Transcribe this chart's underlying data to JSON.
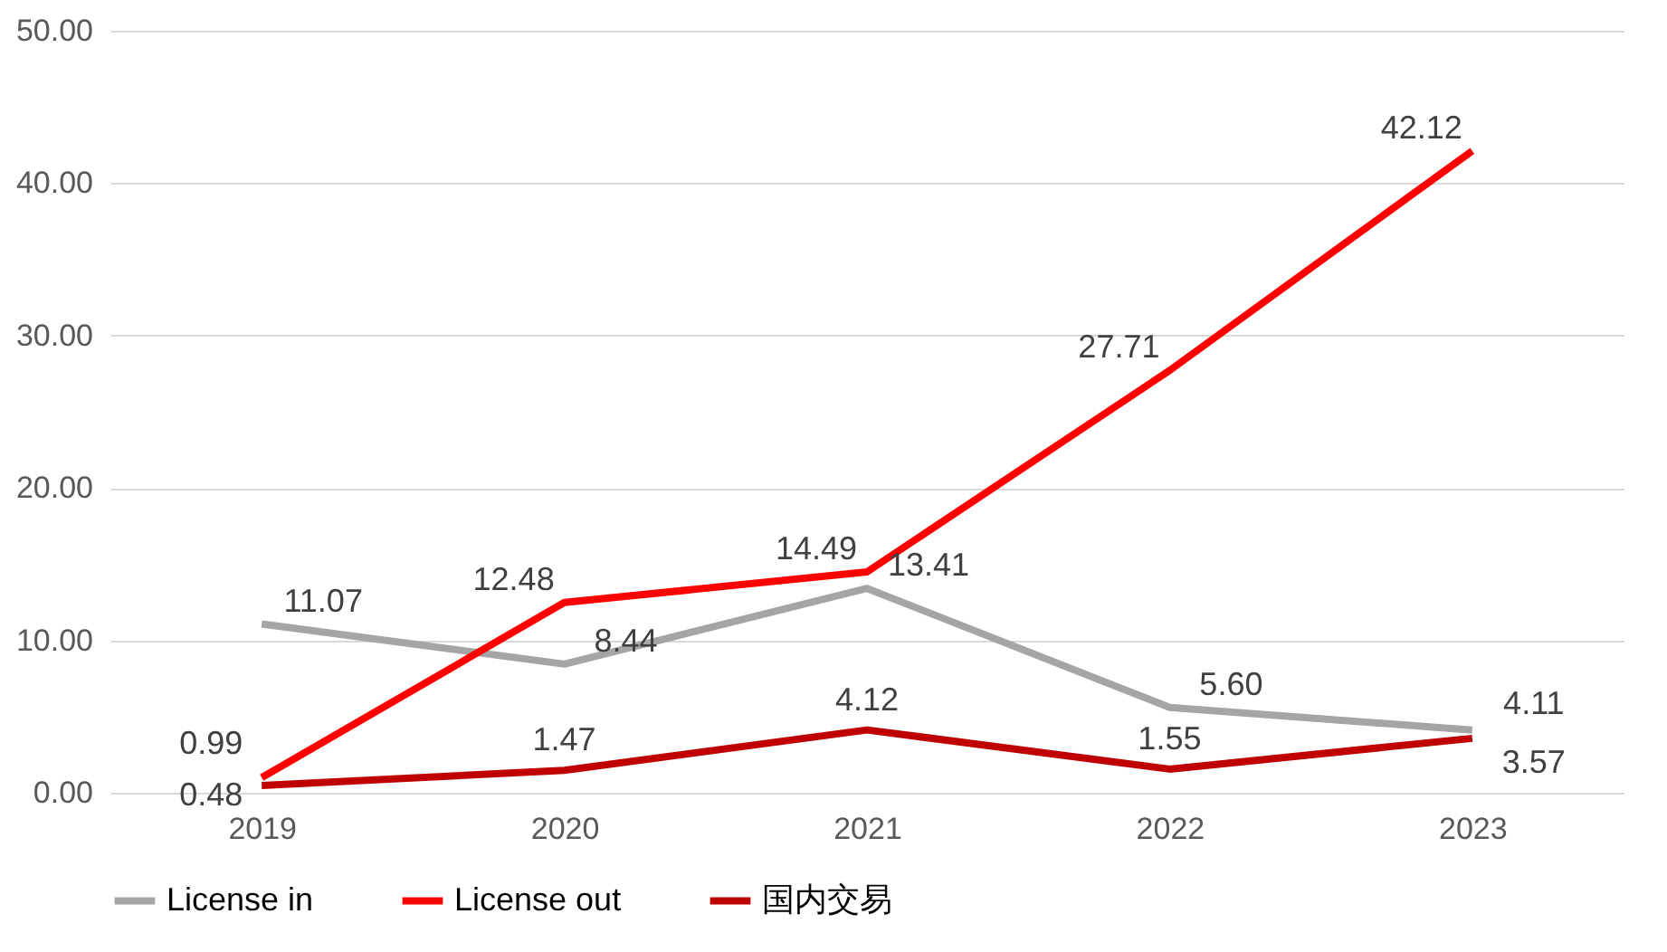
{
  "chart_data": {
    "type": "line",
    "categories": [
      "2019",
      "2020",
      "2021",
      "2022",
      "2023"
    ],
    "series": [
      {
        "name": "License in",
        "color": "#a5a5a5",
        "values": [
          11.07,
          8.44,
          13.41,
          5.6,
          4.11
        ],
        "value_labels": [
          "11.07",
          "8.44",
          "13.41",
          "5.60",
          "4.11"
        ]
      },
      {
        "name": "License out",
        "color": "#ff0000",
        "values": [
          0.99,
          12.48,
          14.49,
          27.71,
          42.12
        ],
        "value_labels": [
          "0.99",
          "12.48",
          "14.49",
          "27.71",
          "42.12"
        ]
      },
      {
        "name": "国内交易",
        "color": "#c00000",
        "values": [
          0.48,
          1.47,
          4.12,
          1.55,
          3.57
        ],
        "value_labels": [
          "0.48",
          "1.47",
          "4.12",
          "1.55",
          "3.57"
        ]
      }
    ],
    "ylim": [
      0,
      50
    ],
    "yticks": [
      {
        "value": 0,
        "label": "0.00"
      },
      {
        "value": 10,
        "label": "10.00"
      },
      {
        "value": 20,
        "label": "20.00"
      },
      {
        "value": 30,
        "label": "30.00"
      },
      {
        "value": 40,
        "label": "40.00"
      },
      {
        "value": 50,
        "label": "50.00"
      }
    ],
    "grid": "y",
    "legend": "bottom",
    "marker": "none",
    "line_style": "solid"
  }
}
